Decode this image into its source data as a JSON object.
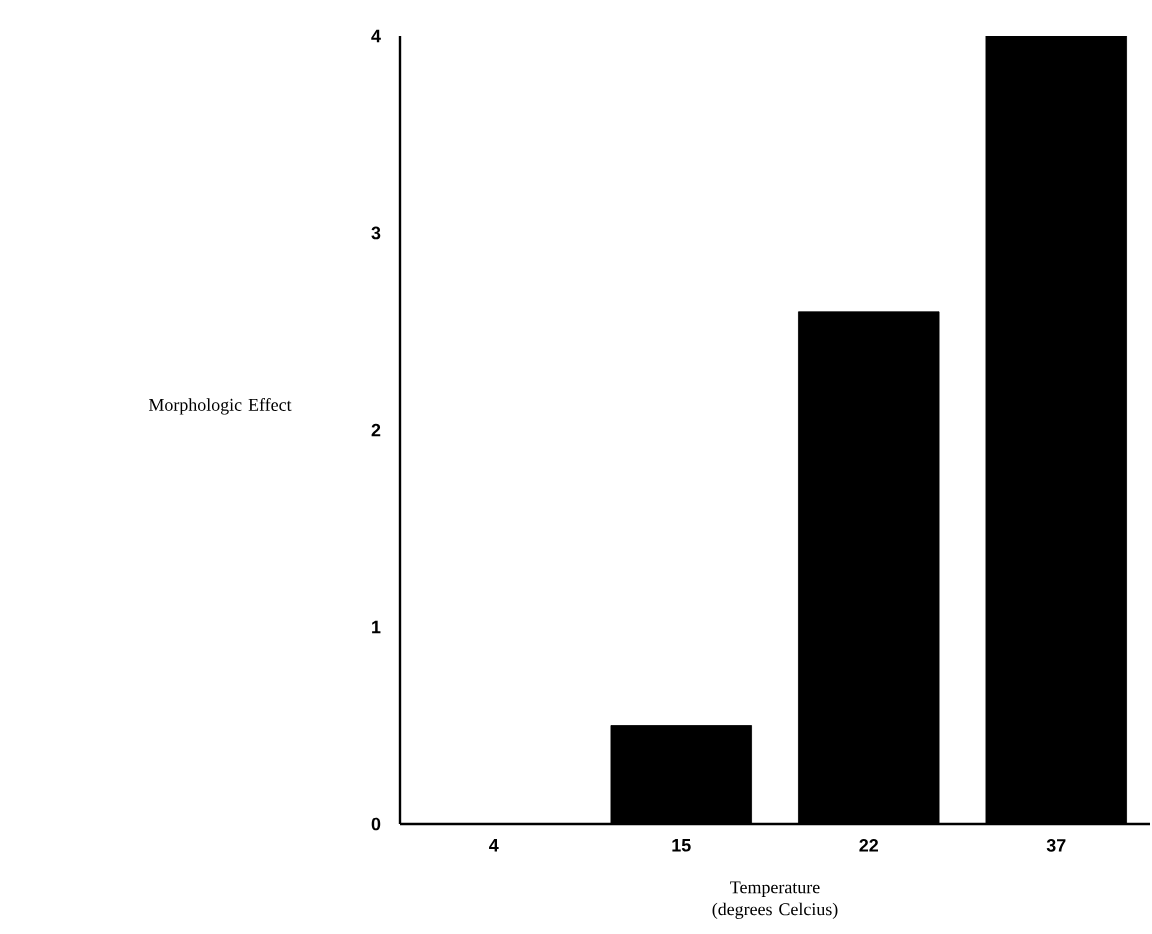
{
  "chart_data": {
    "type": "bar",
    "categories": [
      "4",
      "15",
      "22",
      "37"
    ],
    "values": [
      0,
      0.5,
      2.6,
      4
    ],
    "color": "#000000",
    "xlabel": "Temperature (degrees Celcius)",
    "ylabel": "Morphologic Effect",
    "ylim": [
      0,
      4
    ],
    "yticks": [
      0,
      1,
      2,
      3,
      4
    ],
    "grid": false
  }
}
